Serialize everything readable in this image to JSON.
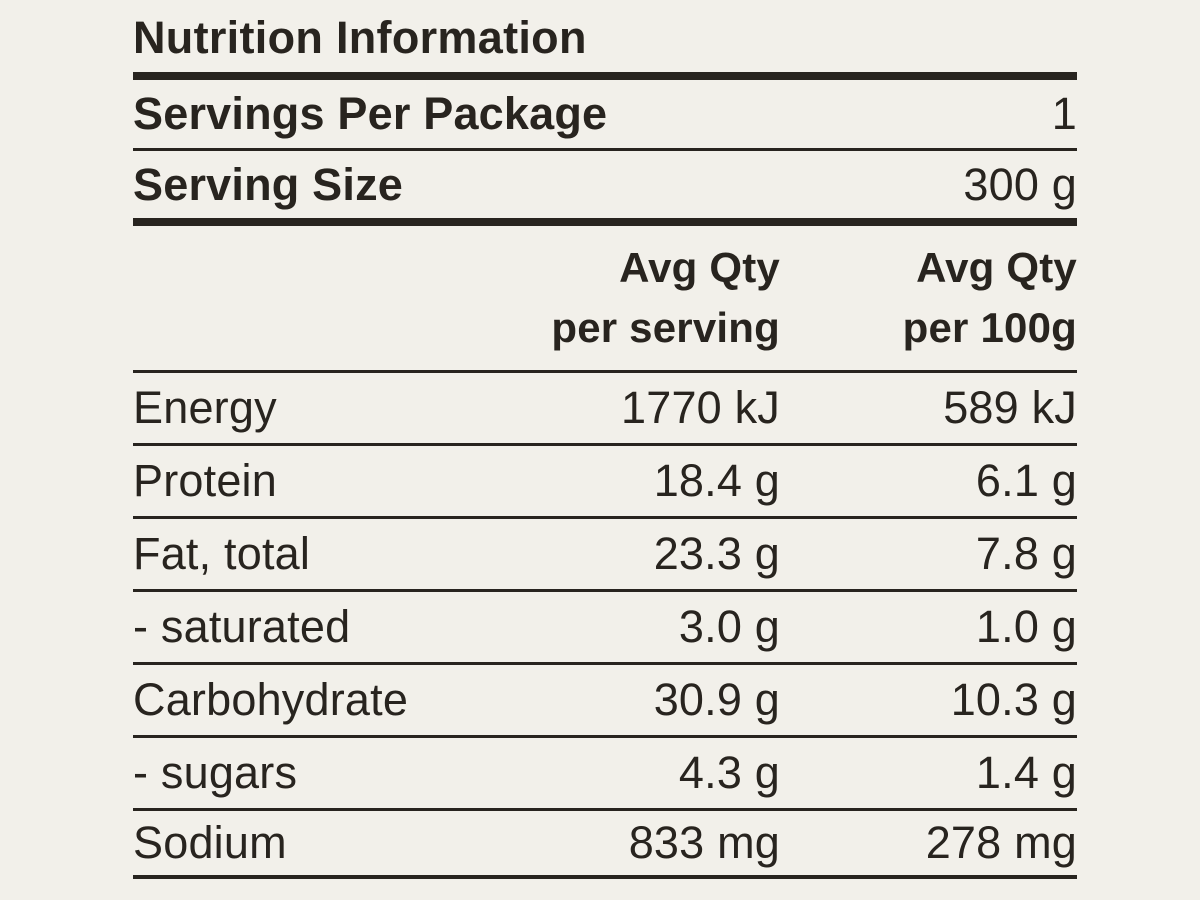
{
  "panel": {
    "title": "Nutrition Information",
    "meta": [
      {
        "label": "Servings Per Package",
        "value": "1"
      },
      {
        "label": "Serving Size",
        "value": "300 g"
      }
    ],
    "columns": {
      "per_serving": {
        "line1": "Avg Qty",
        "line2": "per serving"
      },
      "per_100g": {
        "line1": "Avg Qty",
        "line2": "per 100g"
      }
    },
    "rows": [
      {
        "label": "Energy",
        "per_serving": "1770 kJ",
        "per_100g": "589 kJ"
      },
      {
        "label": "Protein",
        "per_serving": "18.4 g",
        "per_100g": "6.1 g"
      },
      {
        "label": "Fat, total",
        "per_serving": "23.3 g",
        "per_100g": "7.8 g"
      },
      {
        "label": "- saturated",
        "per_serving": "3.0 g",
        "per_100g": "1.0 g"
      },
      {
        "label": "Carbohydrate",
        "per_serving": "30.9 g",
        "per_100g": "10.3 g"
      },
      {
        "label": "- sugars",
        "per_serving": "4.3 g",
        "per_100g": "1.4 g"
      },
      {
        "label": "Sodium",
        "per_serving": "833 mg",
        "per_100g": "278 mg"
      }
    ],
    "colors": {
      "background": "#f2f0ea",
      "text": "#28241f"
    }
  }
}
